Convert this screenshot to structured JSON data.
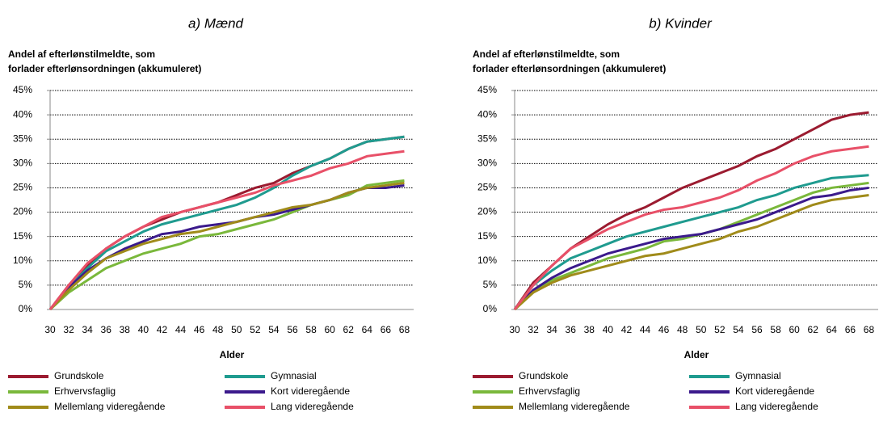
{
  "chart_data": [
    {
      "type": "line",
      "title": "a) Mænd",
      "ylabel": [
        "Andel af efterlønstilmeldte,  som",
        "forlader efterlønsordningen (akkumuleret)"
      ],
      "xlabel": "Alder",
      "x": [
        30,
        32,
        34,
        36,
        38,
        40,
        42,
        44,
        46,
        48,
        50,
        52,
        54,
        56,
        58,
        60,
        62,
        64,
        66,
        68
      ],
      "xlim": [
        30,
        69
      ],
      "xticks": [
        30,
        32,
        34,
        36,
        38,
        40,
        42,
        44,
        46,
        48,
        50,
        52,
        54,
        56,
        58,
        60,
        62,
        64,
        66,
        68
      ],
      "ylim": [
        0,
        45
      ],
      "yticks": [
        {
          "value": 0,
          "label": "0%"
        },
        {
          "value": 5,
          "label": "5%"
        },
        {
          "value": 10,
          "label": "10%"
        },
        {
          "value": 15,
          "label": "15%"
        },
        {
          "value": 20,
          "label": "20%"
        },
        {
          "value": 25,
          "label": "25%"
        },
        {
          "value": 30,
          "label": "30%"
        },
        {
          "value": 35,
          "label": "35%"
        },
        {
          "value": 40,
          "label": "40%"
        },
        {
          "value": 45,
          "label": "45%"
        }
      ],
      "grid": true,
      "legend": "bottom",
      "series": [
        {
          "name": "Grundskole",
          "color": "#9b1b30",
          "values": [
            0,
            5,
            9,
            12.5,
            15,
            17,
            18.5,
            20,
            21,
            22,
            23.5,
            25,
            26,
            28,
            29.5,
            31,
            33,
            34.5,
            35,
            35.5
          ]
        },
        {
          "name": "Gymnasial",
          "color": "#1f9b8f",
          "values": [
            0,
            4.5,
            8.5,
            12,
            14,
            16,
            17.5,
            18.5,
            19.5,
            20.5,
            21.5,
            23,
            25,
            27.5,
            29.5,
            31,
            33,
            34.5,
            35,
            35.5
          ]
        },
        {
          "name": "Erhvervsfaglig",
          "color": "#7ab83b",
          "values": [
            0,
            3.5,
            6,
            8.5,
            10,
            11.5,
            12.5,
            13.5,
            15,
            15.5,
            16.5,
            17.5,
            18.5,
            20,
            21.5,
            22.5,
            23.5,
            25.5,
            26,
            26.5
          ]
        },
        {
          "name": "Kort videregående",
          "color": "#3b1a8c",
          "values": [
            0,
            4.5,
            8,
            10.5,
            12.5,
            14,
            15.5,
            16,
            17,
            17.5,
            18,
            19,
            19.5,
            20.5,
            21.5,
            22.5,
            24,
            25,
            25,
            25.5
          ]
        },
        {
          "name": "Mellemlang videregående",
          "color": "#a08b1a",
          "values": [
            0,
            4,
            7.5,
            10.5,
            12,
            13.5,
            14.5,
            15.5,
            16,
            17,
            18,
            19,
            20,
            21,
            21.5,
            22.5,
            24,
            25,
            25.5,
            26
          ]
        },
        {
          "name": "Lang videregående",
          "color": "#e85068",
          "values": [
            0,
            5,
            9.5,
            12.5,
            15,
            17,
            19,
            20,
            21,
            22,
            23,
            24,
            25.5,
            26.5,
            27.5,
            29,
            30,
            31.5,
            32,
            32.5
          ]
        }
      ]
    },
    {
      "type": "line",
      "title": "b) Kvinder",
      "ylabel": [
        "Andel af efterlønstilmeldte,  som",
        "forlader efterlønsordningen (akkumuleret)"
      ],
      "xlabel": "Alder",
      "x": [
        30,
        32,
        34,
        36,
        38,
        40,
        42,
        44,
        46,
        48,
        50,
        52,
        54,
        56,
        58,
        60,
        62,
        64,
        66,
        68
      ],
      "xlim": [
        30,
        69
      ],
      "xticks": [
        30,
        32,
        34,
        36,
        38,
        40,
        42,
        44,
        46,
        48,
        50,
        52,
        54,
        56,
        58,
        60,
        62,
        64,
        66,
        68
      ],
      "ylim": [
        0,
        45
      ],
      "yticks": [
        {
          "value": 0,
          "label": "0%"
        },
        {
          "value": 5,
          "label": "5%"
        },
        {
          "value": 10,
          "label": "10%"
        },
        {
          "value": 15,
          "label": "15%"
        },
        {
          "value": 20,
          "label": "20%"
        },
        {
          "value": 25,
          "label": "25%"
        },
        {
          "value": 30,
          "label": "30%"
        },
        {
          "value": 35,
          "label": "35%"
        },
        {
          "value": 40,
          "label": "40%"
        },
        {
          "value": 45,
          "label": "45%"
        }
      ],
      "grid": true,
      "legend": "bottom",
      "series": [
        {
          "name": "Grundskole",
          "color": "#9b1b30",
          "values": [
            0,
            5.5,
            9,
            12.5,
            15,
            17.5,
            19.5,
            21,
            23,
            25,
            26.5,
            28,
            29.5,
            31.5,
            33,
            35,
            37,
            39,
            40,
            40.5
          ]
        },
        {
          "name": "Gymnasial",
          "color": "#1f9b8f",
          "values": [
            0,
            5,
            8,
            10.5,
            12,
            13.5,
            15,
            16,
            17,
            18,
            19,
            20,
            21,
            22.5,
            23.5,
            25,
            26,
            27,
            27.3,
            27.6
          ]
        },
        {
          "name": "Erhvervsfaglig",
          "color": "#7ab83b",
          "values": [
            0,
            3.5,
            6,
            7.5,
            9,
            10.5,
            11.5,
            12.5,
            14,
            14.5,
            15.5,
            16.5,
            18,
            19.5,
            21,
            22.5,
            24,
            25,
            25.5,
            26
          ]
        },
        {
          "name": "Kort videregående",
          "color": "#3b1a8c",
          "values": [
            0,
            4,
            6.5,
            8.5,
            10,
            11.5,
            12.5,
            13.5,
            14.5,
            15,
            15.5,
            16.5,
            17.5,
            18.5,
            20,
            21.5,
            23,
            23.5,
            24.5,
            25
          ]
        },
        {
          "name": "Mellemlang videregående",
          "color": "#a08b1a",
          "values": [
            0,
            3.5,
            5.5,
            7,
            8,
            9,
            10,
            11,
            11.5,
            12.5,
            13.5,
            14.5,
            16,
            17,
            18.5,
            20,
            21.5,
            22.5,
            23,
            23.5
          ]
        },
        {
          "name": "Lang videregående",
          "color": "#e85068",
          "values": [
            0,
            5,
            9,
            12.5,
            14.5,
            16.5,
            18,
            19.5,
            20.5,
            21,
            22,
            23,
            24.5,
            26.5,
            28,
            30,
            31.5,
            32.5,
            33,
            33.5
          ]
        }
      ]
    }
  ]
}
